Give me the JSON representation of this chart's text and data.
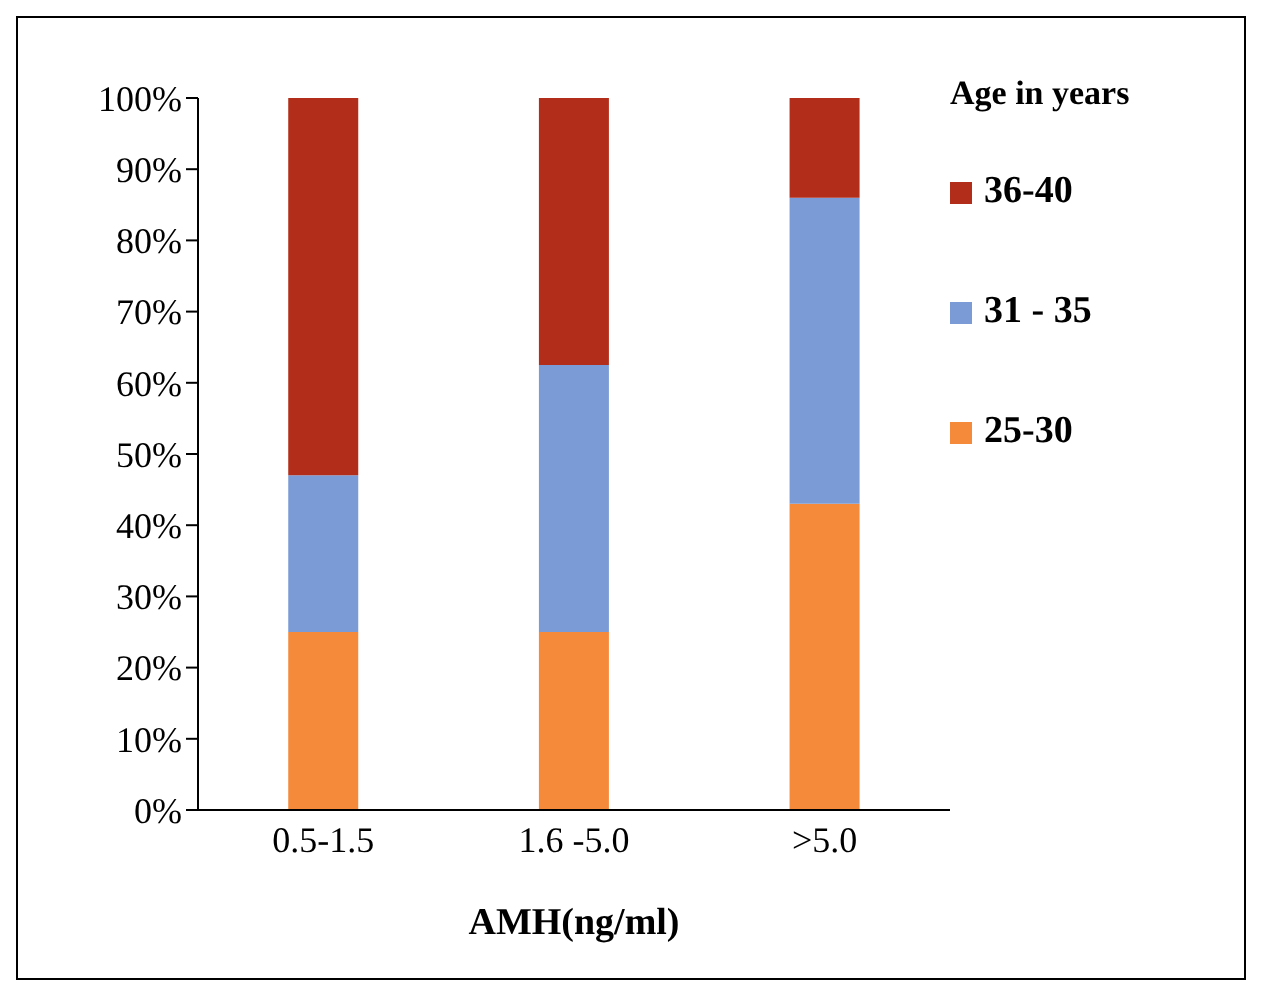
{
  "chart_data": {
    "type": "bar",
    "stacked": true,
    "xlabel": "AMH(ng/ml)",
    "legend_title": "Age in years",
    "legend": "right",
    "categories": [
      "0.5-1.5",
      "1.6 -5.0",
      ">5.0"
    ],
    "series": [
      {
        "name": "25-30",
        "color": "#f58a3b",
        "values": [
          25,
          25,
          43
        ]
      },
      {
        "name": "31 - 35",
        "color": "#7b9bd6",
        "values": [
          22,
          37.5,
          43
        ]
      },
      {
        "name": "36-40",
        "color": "#b22d1a",
        "values": [
          53,
          37.5,
          14
        ]
      }
    ],
    "ylim": [
      0,
      100
    ],
    "yticks": [
      {
        "value": 0,
        "label": "0%"
      },
      {
        "value": 10,
        "label": "10%"
      },
      {
        "value": 20,
        "label": "20%"
      },
      {
        "value": 30,
        "label": "30%"
      },
      {
        "value": 40,
        "label": "40%"
      },
      {
        "value": 50,
        "label": "50%"
      },
      {
        "value": 60,
        "label": "60%"
      },
      {
        "value": 70,
        "label": "70%"
      },
      {
        "value": 80,
        "label": "80%"
      },
      {
        "value": 90,
        "label": "90%"
      },
      {
        "value": 100,
        "label": "100%"
      }
    ],
    "grid": false
  }
}
